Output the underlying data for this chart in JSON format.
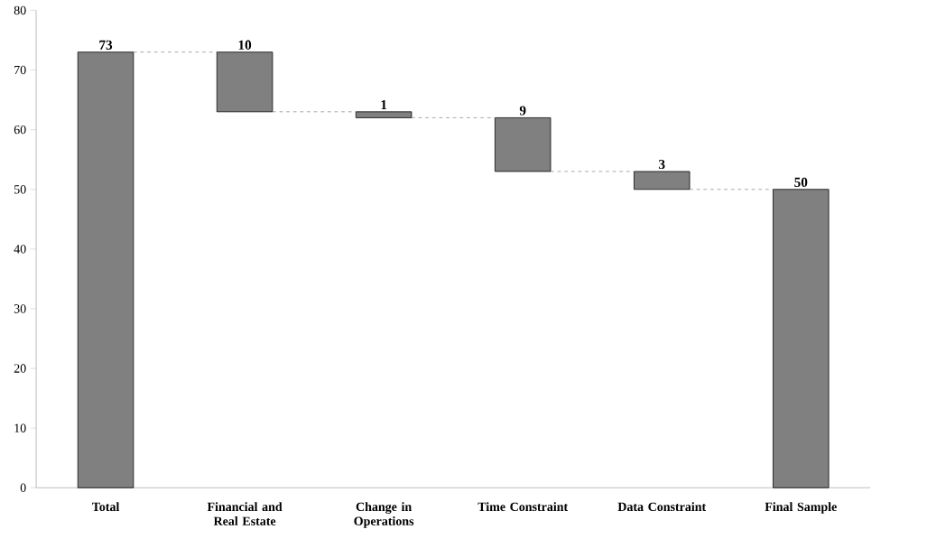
{
  "chart_data": {
    "type": "bar",
    "categories": [
      "Total",
      "Financial and Real Estate",
      "Change in Operations",
      "Time Constraint",
      "Data Constraint",
      "Final Sample"
    ],
    "values": [
      73,
      10,
      1,
      9,
      3,
      50
    ],
    "base": [
      0,
      63,
      62,
      53,
      50,
      0
    ],
    "color": "#808080",
    "data_labels": true,
    "ylim": [
      0,
      80
    ],
    "yticks": [
      0,
      10,
      20,
      30,
      40,
      50,
      60,
      70,
      80
    ],
    "grid": false
  }
}
